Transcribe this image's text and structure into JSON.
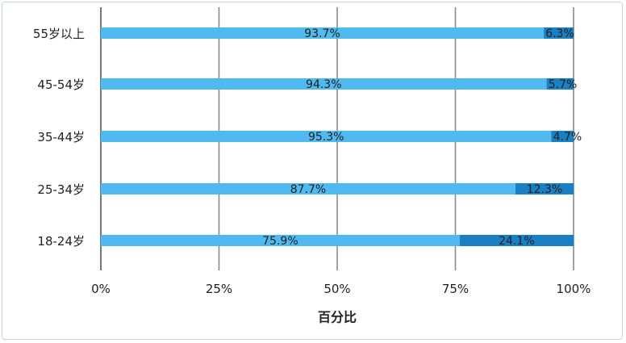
{
  "chart_data": {
    "type": "bar",
    "orientation": "horizontal",
    "stacked": true,
    "categories": [
      "55岁以上",
      "45-54岁",
      "35-44岁",
      "25-34岁",
      "18-24岁"
    ],
    "series": [
      {
        "values": [
          93.7,
          94.3,
          95.3,
          87.7,
          75.9
        ],
        "labels": [
          "93.7%",
          "94.3%",
          "95.3%",
          "87.7%",
          "75.9%"
        ],
        "color": "#4fb9f0"
      },
      {
        "values": [
          6.3,
          5.7,
          4.7,
          12.3,
          24.1
        ],
        "labels": [
          "6.3%",
          "5.7%",
          "4.7%",
          "12.3%",
          "24.1%"
        ],
        "color": "#1b7fc4"
      }
    ],
    "xlabel": "百分比",
    "ylabel": "",
    "xlim": [
      0,
      100
    ],
    "x_ticks": [
      "0%",
      "25%",
      "50%",
      "75%",
      "100%"
    ],
    "grid": true,
    "legend": "none"
  }
}
